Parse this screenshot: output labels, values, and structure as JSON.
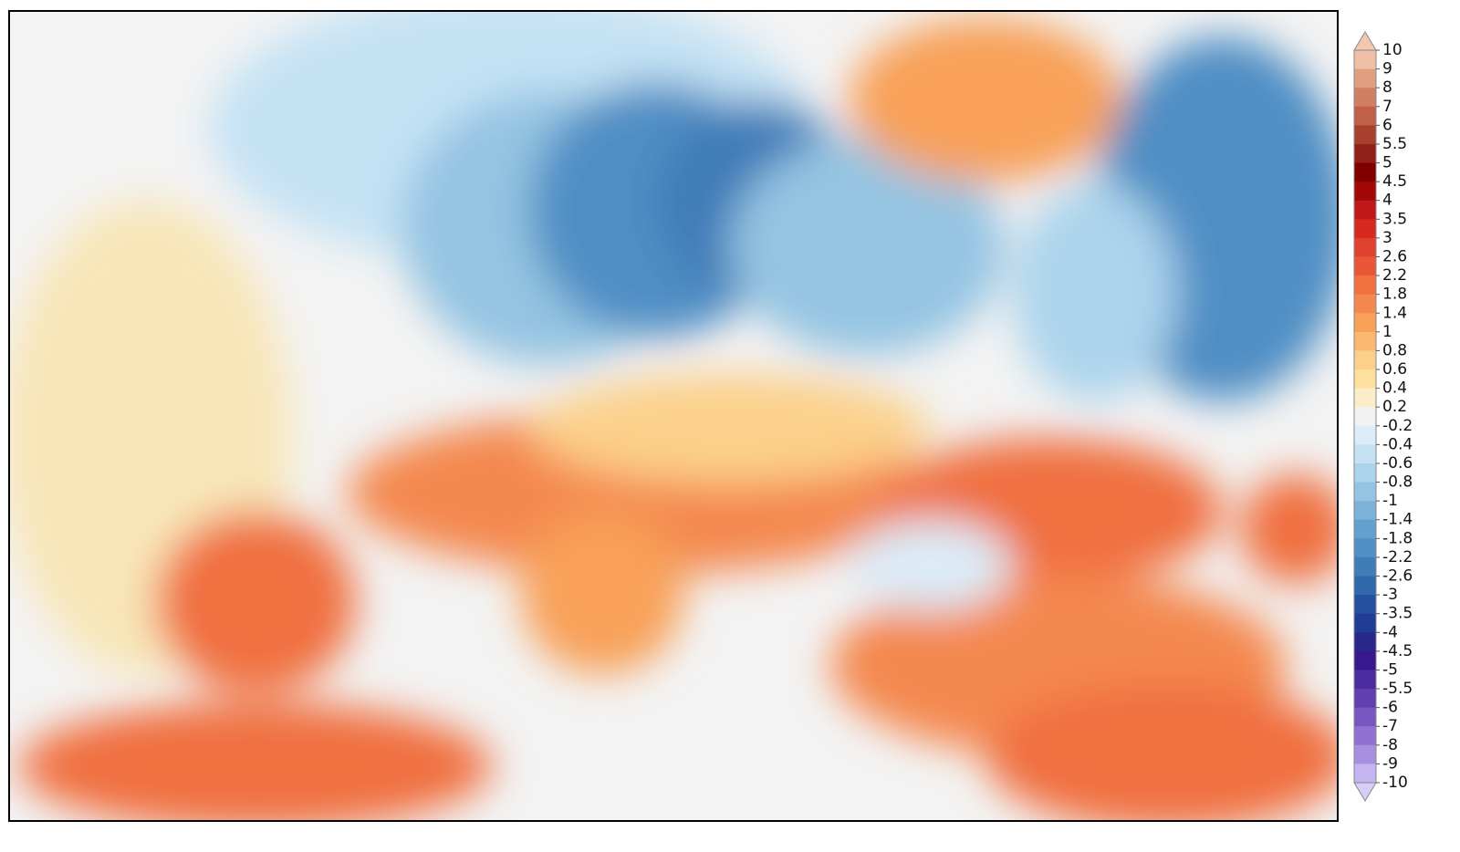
{
  "colorbar": {
    "ticks": [
      10,
      9,
      8,
      7,
      6,
      5.5,
      5,
      4.5,
      4,
      3.5,
      3,
      2.6,
      2.2,
      1.8,
      1.4,
      1,
      0.8,
      0.6,
      0.4,
      0.2,
      -0.2,
      -0.4,
      -0.6,
      -0.8,
      -1,
      -1.4,
      -1.8,
      -2.2,
      -2.6,
      -3,
      -3.5,
      -4,
      -4.5,
      -5,
      -5.5,
      -6,
      -7,
      -8,
      -9,
      -10
    ],
    "colors": [
      "#f0c0a8",
      "#e0a080",
      "#d08060",
      "#c06048",
      "#a84030",
      "#902018",
      "#800000",
      "#a00808",
      "#c01818",
      "#d82820",
      "#e04030",
      "#e85838",
      "#f07040",
      "#f48850",
      "#f8a058",
      "#fbb870",
      "#fcd08a",
      "#fde0a0",
      "#fbedc8",
      "#f2f2f2",
      "#dcecf8",
      "#c4e2f4",
      "#acd4ec",
      "#94c4e2",
      "#7cb2d8",
      "#64a0ce",
      "#508ec4",
      "#3f7cb8",
      "#3068ac",
      "#2450a0",
      "#203c94",
      "#28288a",
      "#381890",
      "#4a2ca0",
      "#6040b0",
      "#7858c0",
      "#9070d0",
      "#a890e0",
      "#c4b4f0"
    ],
    "over_color": "#f4c8b0",
    "under_color": "#d8ccf8"
  }
}
